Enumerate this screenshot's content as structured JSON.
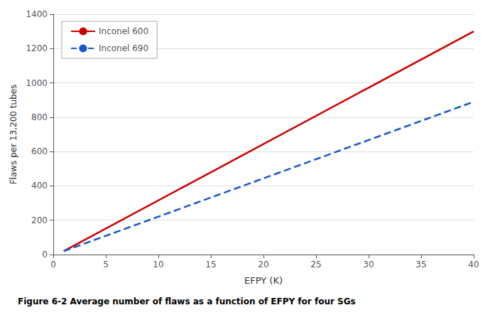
{
  "chart_data": {
    "type": "line",
    "caption": "Figure 6-2 Average number of flaws as a function of EFPY for four SGs",
    "xlabel": "EFPY (K)",
    "ylabel": "Flaws per 13,200 tubes",
    "x": [
      1,
      40
    ],
    "series": [
      {
        "name": "Inconel 600",
        "color": "#cc0000",
        "line_style": "solid",
        "values": [
          20,
          1300
        ]
      },
      {
        "name": "Inconel 690",
        "color": "#1a56cc",
        "line_style": "dashed",
        "values": [
          20,
          890
        ]
      }
    ],
    "xlim": [
      0,
      40
    ],
    "ylim": [
      0,
      1400
    ],
    "xticks": [
      0,
      5,
      10,
      15,
      20,
      25,
      30,
      35,
      40
    ],
    "yticks": [
      0,
      200,
      400,
      600,
      800,
      1000,
      1200,
      1400
    ],
    "grid": "y",
    "legend": "upper left"
  }
}
